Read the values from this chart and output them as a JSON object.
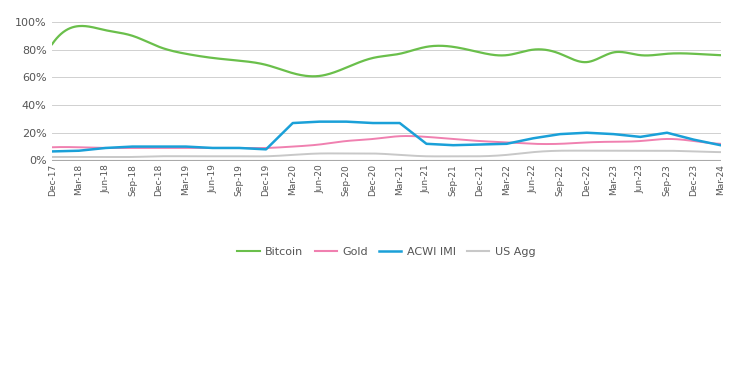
{
  "background_color": "#ffffff",
  "grid_color": "#d0d0d0",
  "text_color": "#555555",
  "line_colors": {
    "Bitcoin": "#6abf4b",
    "Gold": "#f080b0",
    "ACWI IMI": "#1aa0d8",
    "US Agg": "#c8c8c8"
  },
  "line_widths": {
    "Bitcoin": 1.6,
    "Gold": 1.4,
    "ACWI IMI": 1.8,
    "US Agg": 1.4
  },
  "x_tick_labels": [
    "Dec-17",
    "Mar-18",
    "Jun-18",
    "Sep-18",
    "Dec-18",
    "Mar-19",
    "Jun-19",
    "Sep-19",
    "Dec-19",
    "Mar-20",
    "Jun-20",
    "Sep-20",
    "Dec-20",
    "Mar-21",
    "Jun-21",
    "Sep-21",
    "Dec-21",
    "Mar-22",
    "Jun-22",
    "Sep-22",
    "Dec-22",
    "Mar-23",
    "Jun-23",
    "Sep-23",
    "Dec-23",
    "Mar-24"
  ],
  "ylim": [
    -0.005,
    1.05
  ],
  "yticks": [
    0.0,
    0.2,
    0.4,
    0.6,
    0.8,
    1.0
  ],
  "ytick_labels": [
    "0%",
    "20%",
    "40%",
    "60%",
    "80%",
    "100%"
  ],
  "Bitcoin_x": [
    0,
    1,
    2,
    3,
    4,
    5,
    6,
    7,
    8,
    9,
    10,
    11,
    12,
    13,
    14,
    15,
    16,
    17,
    18,
    19,
    20,
    21,
    22,
    23,
    24,
    25
  ],
  "Bitcoin": [
    0.84,
    0.97,
    0.94,
    0.9,
    0.82,
    0.77,
    0.74,
    0.72,
    0.69,
    0.63,
    0.61,
    0.67,
    0.74,
    0.77,
    0.82,
    0.82,
    0.78,
    0.76,
    0.8,
    0.77,
    0.71,
    0.78,
    0.76,
    0.77,
    0.77,
    0.76
  ],
  "Gold_x": [
    0,
    1,
    2,
    3,
    4,
    5,
    6,
    7,
    8,
    9,
    10,
    11,
    12,
    13,
    14,
    15,
    16,
    17,
    18,
    19,
    20,
    21,
    22,
    23,
    24,
    25
  ],
  "Gold": [
    0.095,
    0.095,
    0.09,
    0.09,
    0.09,
    0.09,
    0.09,
    0.09,
    0.09,
    0.1,
    0.115,
    0.14,
    0.155,
    0.175,
    0.17,
    0.155,
    0.14,
    0.13,
    0.12,
    0.12,
    0.13,
    0.135,
    0.14,
    0.155,
    0.14,
    0.12
  ],
  "ACWI_x": [
    0,
    1,
    2,
    3,
    4,
    5,
    6,
    7,
    8,
    9,
    10,
    11,
    12,
    13,
    14,
    15,
    16,
    17,
    18,
    19,
    20,
    21,
    22,
    23,
    24,
    25
  ],
  "ACWI IMI": [
    0.065,
    0.07,
    0.09,
    0.1,
    0.1,
    0.1,
    0.09,
    0.09,
    0.08,
    0.27,
    0.28,
    0.28,
    0.27,
    0.27,
    0.12,
    0.11,
    0.115,
    0.12,
    0.16,
    0.19,
    0.2,
    0.19,
    0.17,
    0.2,
    0.15,
    0.11
  ],
  "USAgg_x": [
    0,
    1,
    2,
    3,
    4,
    5,
    6,
    7,
    8,
    9,
    10,
    11,
    12,
    13,
    14,
    15,
    16,
    17,
    18,
    19,
    20,
    21,
    22,
    23,
    24,
    25
  ],
  "US Agg": [
    0.025,
    0.025,
    0.025,
    0.025,
    0.03,
    0.03,
    0.03,
    0.03,
    0.03,
    0.04,
    0.05,
    0.05,
    0.05,
    0.04,
    0.03,
    0.03,
    0.03,
    0.04,
    0.06,
    0.07,
    0.07,
    0.07,
    0.07,
    0.07,
    0.065,
    0.06
  ]
}
